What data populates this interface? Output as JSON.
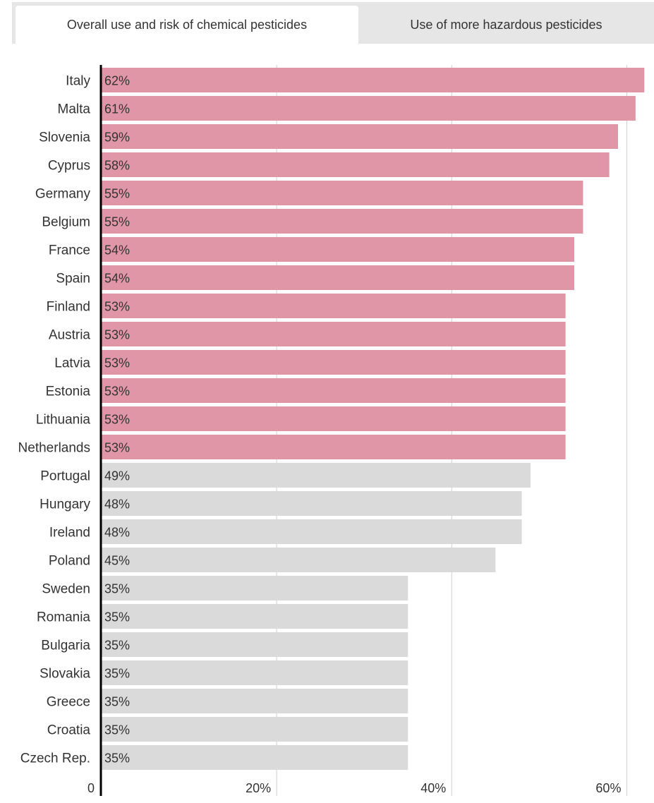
{
  "tabs": [
    {
      "label": "Overall use and risk of chemical pesticides",
      "active": true
    },
    {
      "label": "Use of more hazardous pesticides",
      "active": false
    }
  ],
  "colors": {
    "highlight": "#e096a6",
    "neutral": "#dadada",
    "grid": "#d0d0d0",
    "axis": "#000000",
    "text": "#333333"
  },
  "chart_data": {
    "type": "bar",
    "orientation": "horizontal",
    "title": "",
    "xlabel": "",
    "ylabel": "",
    "xlim": [
      0,
      62.3
    ],
    "grid": true,
    "legend": "none",
    "x_ticks": [
      {
        "value": 0,
        "label": "0"
      },
      {
        "value": 20,
        "label": "20%"
      },
      {
        "value": 40,
        "label": "40%"
      },
      {
        "value": 60,
        "label": "60%"
      }
    ],
    "categories": [
      "Italy",
      "Malta",
      "Slovenia",
      "Cyprus",
      "Germany",
      "Belgium",
      "France",
      "Spain",
      "Finland",
      "Austria",
      "Latvia",
      "Estonia",
      "Lithuania",
      "Netherlands",
      "Portugal",
      "Hungary",
      "Ireland",
      "Poland",
      "Sweden",
      "Romania",
      "Bulgaria",
      "Slovakia",
      "Greece",
      "Croatia",
      "Czech Rep."
    ],
    "values": [
      62,
      61,
      59,
      58,
      55,
      55,
      54,
      54,
      53,
      53,
      53,
      53,
      53,
      53,
      49,
      48,
      48,
      45,
      35,
      35,
      35,
      35,
      35,
      35,
      35
    ],
    "value_labels": [
      "62%",
      "61%",
      "59%",
      "58%",
      "55%",
      "55%",
      "54%",
      "54%",
      "53%",
      "53%",
      "53%",
      "53%",
      "53%",
      "53%",
      "49%",
      "48%",
      "48%",
      "45%",
      "35%",
      "35%",
      "35%",
      "35%",
      "35%",
      "35%",
      "35%"
    ],
    "highlighted": [
      true,
      true,
      true,
      true,
      true,
      true,
      true,
      true,
      true,
      true,
      true,
      true,
      true,
      true,
      false,
      false,
      false,
      false,
      false,
      false,
      false,
      false,
      false,
      false,
      false
    ]
  }
}
